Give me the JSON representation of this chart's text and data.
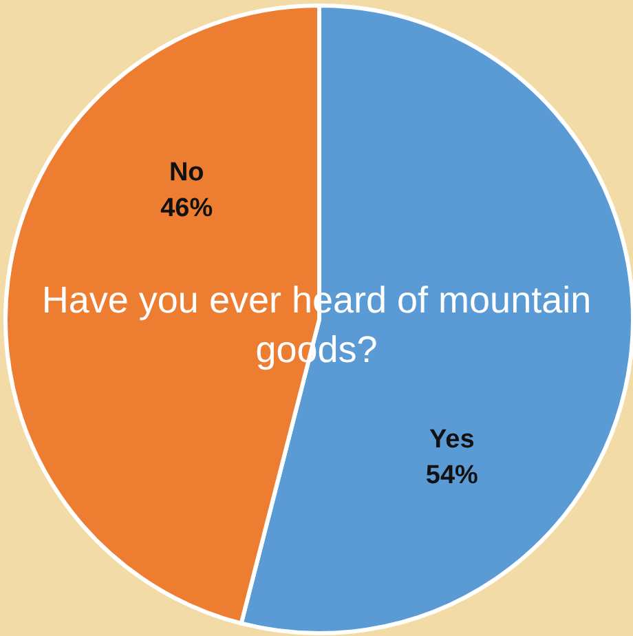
{
  "chart_data": {
    "type": "pie",
    "title": "Have you ever heard of mountain goods?",
    "categories": [
      "Yes",
      "No"
    ],
    "values": [
      54,
      46
    ],
    "value_labels": [
      "54%",
      "46%"
    ],
    "colors": [
      "#5b9bd5",
      "#ed7d31"
    ],
    "legend": false
  }
}
